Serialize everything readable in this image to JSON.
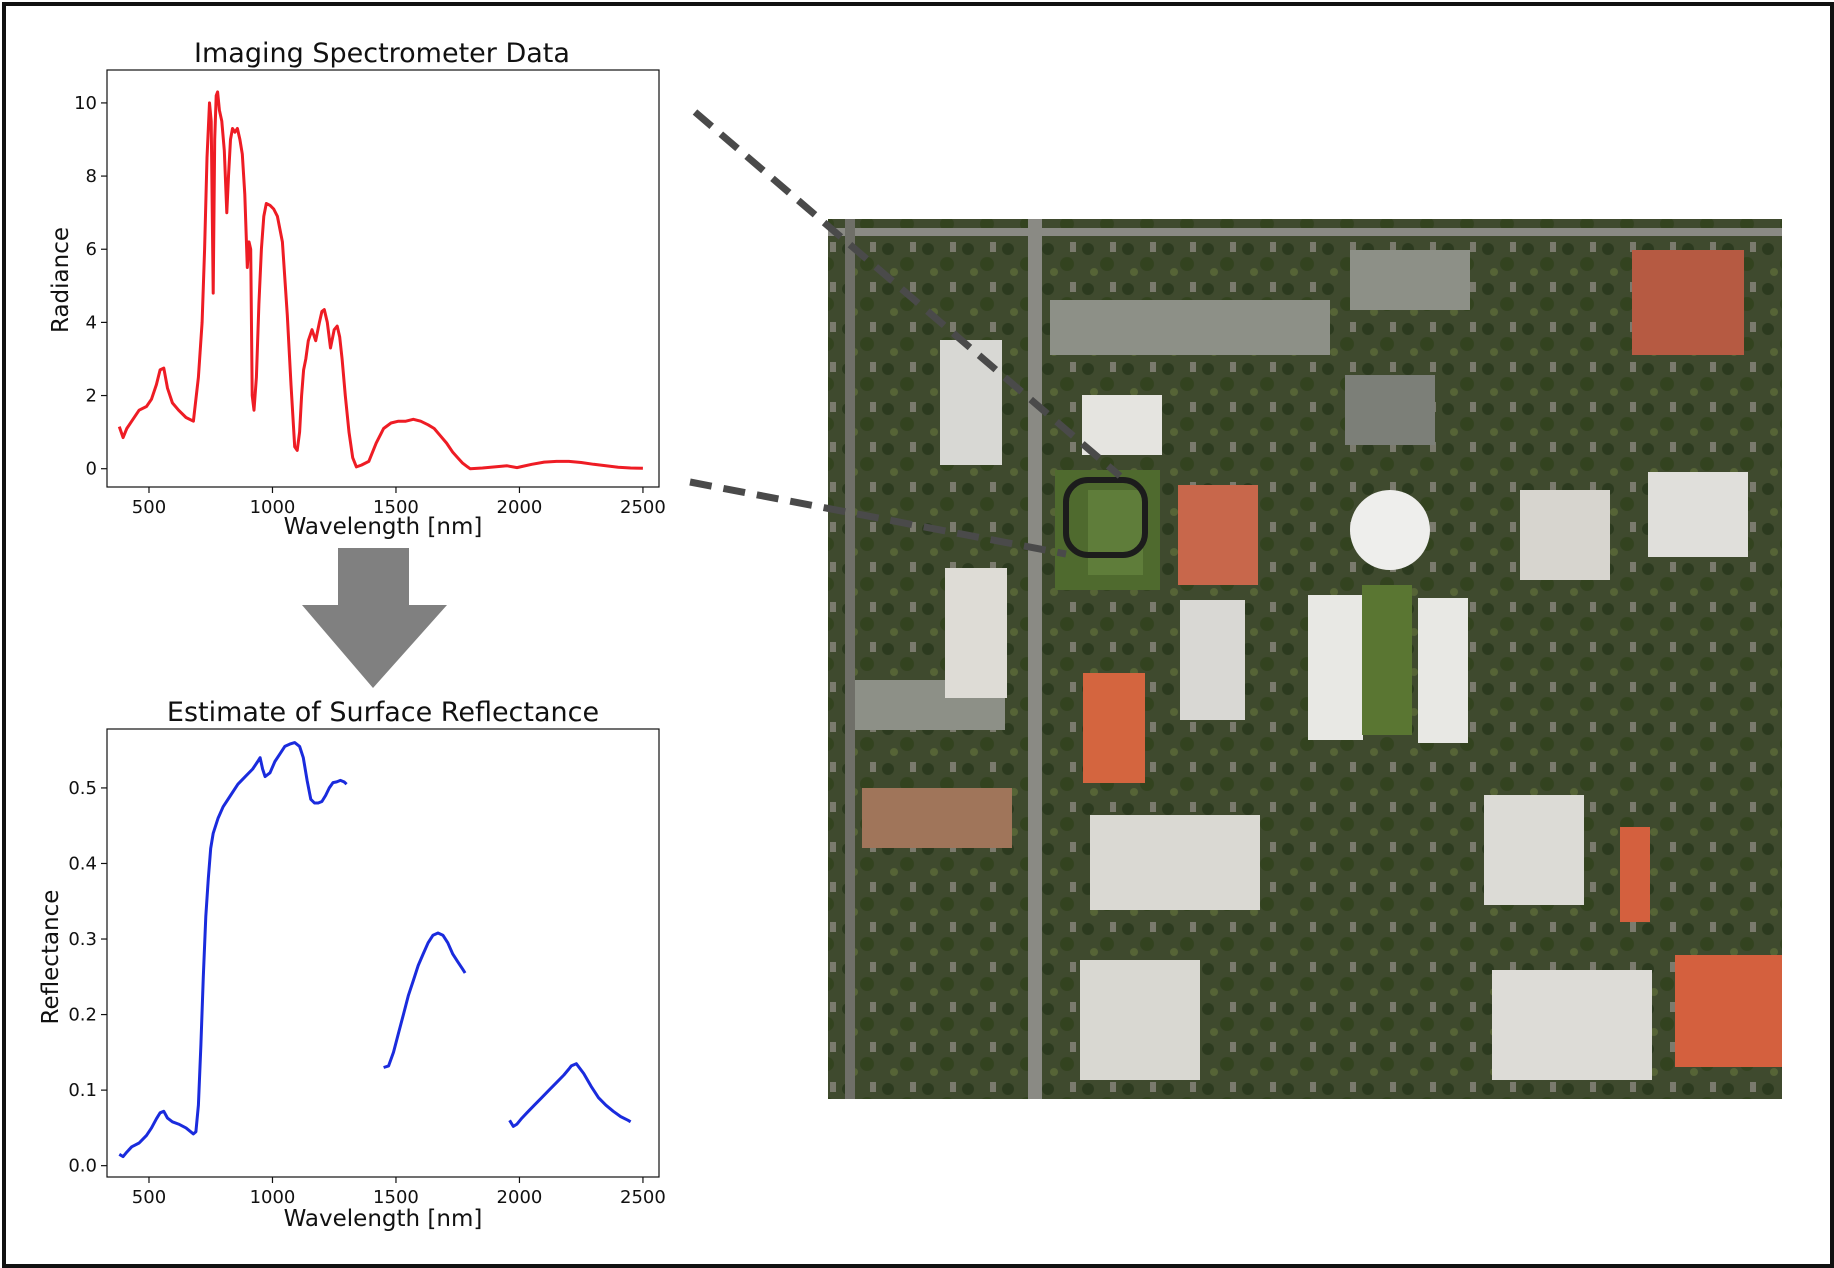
{
  "colors": {
    "radiance_line": "#ee1c24",
    "reflectance_line": "#1a2bdd",
    "arrow": "#808080",
    "zoom_lines": "#4a4a4a",
    "roi_outline": "#1c1c1c",
    "frame": "#111111"
  },
  "icons": {
    "flow_arrow": "down-arrow-icon",
    "roi_marker": "rounded-rectangle-outline"
  },
  "aerial_image": {
    "description": "aerial satellite photograph of a university campus with buildings, roads, parking lots and trees"
  },
  "chart_data": [
    {
      "type": "line",
      "title": "Imaging Spectrometer Data",
      "xlabel": "Wavelength [nm]",
      "ylabel": "Radiance",
      "xlim": [
        330,
        2565
      ],
      "ylim": [
        -0.5,
        10.9
      ],
      "xticks": [
        500,
        1000,
        1500,
        2000,
        2500
      ],
      "yticks": [
        0,
        2,
        4,
        6,
        8,
        10
      ],
      "grid": false,
      "series": [
        {
          "color": "#ee1c24",
          "x": [
            380,
            395,
            410,
            430,
            460,
            490,
            510,
            530,
            545,
            560,
            575,
            595,
            620,
            650,
            680,
            700,
            715,
            725,
            735,
            745,
            752,
            760,
            766,
            772,
            778,
            785,
            795,
            805,
            815,
            822,
            830,
            838,
            848,
            858,
            868,
            878,
            888,
            898,
            905,
            912,
            918,
            925,
            935,
            945,
            955,
            965,
            975,
            990,
            1005,
            1020,
            1040,
            1060,
            1075,
            1090,
            1100,
            1110,
            1118,
            1126,
            1135,
            1145,
            1160,
            1175,
            1190,
            1200,
            1210,
            1222,
            1235,
            1250,
            1262,
            1272,
            1282,
            1295,
            1310,
            1325,
            1340,
            1360,
            1390,
            1420,
            1450,
            1480,
            1510,
            1540,
            1570,
            1600,
            1630,
            1655,
            1680,
            1705,
            1730,
            1750,
            1770,
            1790,
            1800,
            1850,
            1900,
            1950,
            1990,
            2010,
            2050,
            2100,
            2150,
            2200,
            2250,
            2300,
            2350,
            2400,
            2450,
            2500
          ],
          "y": [
            1.15,
            0.85,
            1.1,
            1.3,
            1.6,
            1.7,
            1.9,
            2.3,
            2.7,
            2.75,
            2.2,
            1.8,
            1.6,
            1.4,
            1.3,
            2.5,
            4.0,
            6.0,
            8.5,
            10.0,
            9.5,
            4.8,
            9.0,
            10.2,
            10.3,
            9.8,
            9.5,
            8.7,
            7.0,
            8.0,
            9.0,
            9.3,
            9.2,
            9.3,
            9.0,
            8.6,
            7.5,
            5.5,
            6.2,
            6.0,
            2.0,
            1.6,
            2.5,
            4.5,
            6.0,
            6.9,
            7.25,
            7.2,
            7.1,
            6.9,
            6.2,
            4.2,
            2.3,
            0.6,
            0.5,
            1.0,
            2.0,
            2.7,
            3.0,
            3.5,
            3.8,
            3.5,
            4.0,
            4.3,
            4.35,
            4.0,
            3.3,
            3.8,
            3.9,
            3.6,
            3.0,
            2.0,
            1.0,
            0.3,
            0.05,
            0.1,
            0.2,
            0.7,
            1.1,
            1.25,
            1.3,
            1.3,
            1.35,
            1.3,
            1.2,
            1.1,
            0.9,
            0.7,
            0.45,
            0.3,
            0.15,
            0.05,
            0.0,
            0.02,
            0.05,
            0.08,
            0.03,
            0.06,
            0.12,
            0.18,
            0.2,
            0.2,
            0.17,
            0.12,
            0.08,
            0.04,
            0.02,
            0.01
          ]
        }
      ]
    },
    {
      "type": "line",
      "title": "Estimate of Surface Reflectance",
      "xlabel": "Wavelength [nm]",
      "ylabel": "Reflectance",
      "xlim": [
        330,
        2565
      ],
      "ylim": [
        -0.015,
        0.578
      ],
      "xticks": [
        500,
        1000,
        1500,
        2000,
        2500
      ],
      "yticks": [
        0.0,
        0.1,
        0.2,
        0.3,
        0.4,
        0.5
      ],
      "grid": false,
      "series": [
        {
          "color": "#1a2bdd",
          "segments": [
            {
              "x": [
                380,
                395,
                410,
                430,
                460,
                490,
                510,
                530,
                545,
                560,
                575,
                595,
                620,
                650,
                680,
                690,
                700,
                710,
                720,
                730,
                740,
                750,
                760,
                780,
                800,
                830,
                860,
                890,
                920,
                940,
                950,
                960,
                970,
                990,
                1010,
                1030,
                1050,
                1070,
                1090,
                1110,
                1125,
                1140,
                1155,
                1170,
                1185,
                1200,
                1215,
                1230,
                1245,
                1260,
                1275,
                1290,
                1300
              ],
              "y": [
                0.015,
                0.012,
                0.018,
                0.025,
                0.03,
                0.04,
                0.05,
                0.062,
                0.07,
                0.072,
                0.063,
                0.058,
                0.055,
                0.05,
                0.042,
                0.045,
                0.08,
                0.16,
                0.25,
                0.33,
                0.38,
                0.42,
                0.44,
                0.46,
                0.475,
                0.49,
                0.505,
                0.515,
                0.525,
                0.535,
                0.54,
                0.525,
                0.515,
                0.52,
                0.535,
                0.545,
                0.555,
                0.558,
                0.56,
                0.555,
                0.54,
                0.51,
                0.485,
                0.48,
                0.48,
                0.482,
                0.49,
                0.5,
                0.507,
                0.508,
                0.51,
                0.508,
                0.505
              ]
            },
            {
              "x": [
                1450,
                1470,
                1490,
                1510,
                1530,
                1550,
                1570,
                1590,
                1610,
                1630,
                1650,
                1670,
                1690,
                1710,
                1730,
                1750,
                1770,
                1780
              ],
              "y": [
                0.13,
                0.132,
                0.15,
                0.175,
                0.2,
                0.225,
                0.245,
                0.265,
                0.28,
                0.295,
                0.305,
                0.308,
                0.305,
                0.295,
                0.28,
                0.27,
                0.26,
                0.255
              ]
            },
            {
              "x": [
                1960,
                1975,
                1990,
                2010,
                2030,
                2060,
                2090,
                2120,
                2150,
                2180,
                2200,
                2210,
                2230,
                2260,
                2290,
                2320,
                2350,
                2380,
                2410,
                2440,
                2450
              ],
              "y": [
                0.06,
                0.052,
                0.055,
                0.063,
                0.07,
                0.08,
                0.09,
                0.1,
                0.11,
                0.12,
                0.128,
                0.132,
                0.135,
                0.122,
                0.105,
                0.09,
                0.08,
                0.072,
                0.065,
                0.06,
                0.058
              ]
            }
          ]
        }
      ]
    }
  ]
}
